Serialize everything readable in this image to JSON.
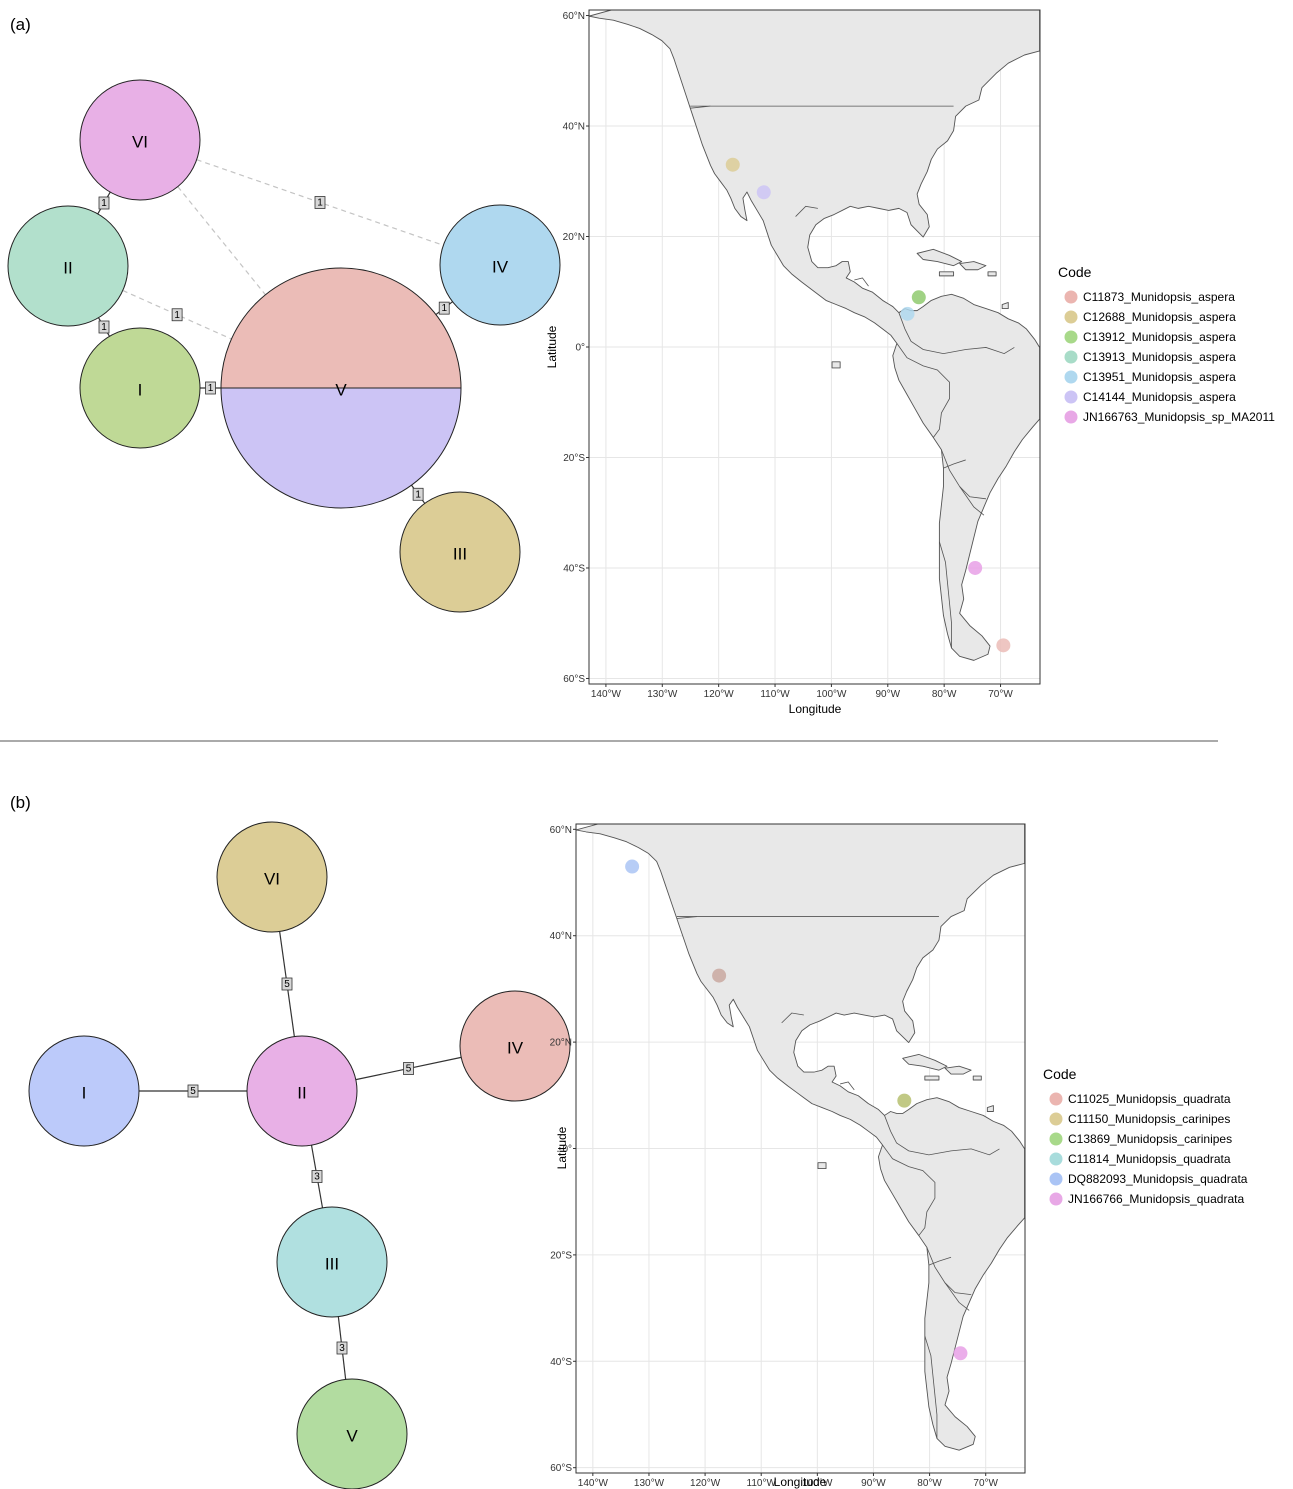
{
  "panels": [
    {
      "label": "(a)",
      "network": {
        "nodes": [
          {
            "id": "VI",
            "label": "VI",
            "color": "#e8b0e6"
          },
          {
            "id": "II",
            "label": "II",
            "color": "#b2e0cc"
          },
          {
            "id": "I",
            "label": "I",
            "color": "#bfd996"
          },
          {
            "id": "V",
            "label": "V",
            "colors": [
              "#ebbcb7",
              "#ccc4f5"
            ]
          },
          {
            "id": "IV",
            "label": "IV",
            "color": "#afd8ef"
          },
          {
            "id": "III",
            "label": "III",
            "color": "#dccd96"
          }
        ],
        "edges": [
          {
            "from": "VI",
            "to": "II",
            "steps": "1",
            "style": "solid"
          },
          {
            "from": "II",
            "to": "I",
            "steps": "1",
            "style": "solid"
          },
          {
            "from": "I",
            "to": "V",
            "steps": "1",
            "style": "solid"
          },
          {
            "from": "V",
            "to": "IV",
            "steps": "1",
            "style": "solid"
          },
          {
            "from": "V",
            "to": "III",
            "steps": "1",
            "style": "solid"
          },
          {
            "from": "II",
            "to": "V",
            "steps": "1",
            "style": "dashed"
          },
          {
            "from": "VI",
            "to": "IV",
            "steps": "1",
            "style": "dashed"
          },
          {
            "from": "VI",
            "to": "V",
            "steps": "",
            "style": "dashed"
          }
        ]
      },
      "map": {
        "x_ticks": [
          "140°W",
          "130°W",
          "120°W",
          "110°W",
          "100°W",
          "90°W",
          "80°W",
          "70°W"
        ],
        "y_ticks": [
          "60°N",
          "40°N",
          "20°N",
          "0°",
          "20°S",
          "40°S",
          "60°S"
        ],
        "xlabel": "Longitude",
        "ylabel": "Latitude",
        "points": [
          {
            "lon": -117.5,
            "lat": 33,
            "color": "#dccd96"
          },
          {
            "lon": -112,
            "lat": 28,
            "color": "#ccc4f5"
          },
          {
            "lon": -84.5,
            "lat": 9,
            "color": "#8fca6e"
          },
          {
            "lon": -86.5,
            "lat": 6,
            "color": "#afd8ef"
          },
          {
            "lon": -74.5,
            "lat": -40,
            "color": "#e8a0e6"
          },
          {
            "lon": -69.5,
            "lat": -54,
            "color": "#ebbcb7"
          }
        ],
        "legend_title": "Code",
        "legend": [
          {
            "label": "C11873_Munidopsis_aspera",
            "color": "#ebb5b0"
          },
          {
            "label": "C12688_Munidopsis_aspera",
            "color": "#dccd96"
          },
          {
            "label": "C13912_Munidopsis_aspera",
            "color": "#a8d98a"
          },
          {
            "label": "C13913_Munidopsis_aspera",
            "color": "#a8dcc8"
          },
          {
            "label": "C13951_Munidopsis_aspera",
            "color": "#afd8ef"
          },
          {
            "label": "C14144_Munidopsis_aspera",
            "color": "#ccc4f5"
          },
          {
            "label": "JN166763_Munidopsis_sp_MA2011",
            "color": "#e8a8e6"
          }
        ]
      }
    },
    {
      "label": "(b)",
      "network": {
        "nodes": [
          {
            "id": "VI",
            "label": "VI",
            "color": "#dccd96"
          },
          {
            "id": "II",
            "label": "II",
            "color": "#e8b0e6"
          },
          {
            "id": "IV",
            "label": "IV",
            "color": "#ebbcb7"
          },
          {
            "id": "I",
            "label": "I",
            "color": "#bccafa"
          },
          {
            "id": "III",
            "label": "III",
            "color": "#b0e0e0"
          },
          {
            "id": "V",
            "label": "V",
            "color": "#b2dca0"
          }
        ],
        "edges": [
          {
            "from": "VI",
            "to": "II",
            "steps": "5",
            "style": "solid"
          },
          {
            "from": "I",
            "to": "II",
            "steps": "5",
            "style": "solid"
          },
          {
            "from": "II",
            "to": "IV",
            "steps": "5",
            "style": "solid"
          },
          {
            "from": "II",
            "to": "III",
            "steps": "3",
            "style": "solid"
          },
          {
            "from": "III",
            "to": "V",
            "steps": "3",
            "style": "solid"
          }
        ]
      },
      "map": {
        "x_ticks": [
          "140°W",
          "130°W",
          "120°W",
          "110°W",
          "100°W",
          "90°W",
          "80°W",
          "70°W"
        ],
        "y_ticks": [
          "60°N",
          "40°N",
          "20°N",
          "0°",
          "20°S",
          "40°S",
          "60°S"
        ],
        "xlabel": "Longitude",
        "ylabel": "Latitude",
        "points": [
          {
            "lon": -133,
            "lat": 53,
            "color": "#aac4f5"
          },
          {
            "lon": -117.5,
            "lat": 32.5,
            "color": "#c9a8a0"
          },
          {
            "lon": -84.5,
            "lat": 9,
            "color": "#b6c070"
          },
          {
            "lon": -74.5,
            "lat": -38.5,
            "color": "#e8a0e6"
          }
        ],
        "legend_title": "Code",
        "legend": [
          {
            "label": "C11025_Munidopsis_quadrata",
            "color": "#ebb5b0"
          },
          {
            "label": "C11150_Munidopsis_carinipes",
            "color": "#dccd96"
          },
          {
            "label": "C13869_Munidopsis_carinipes",
            "color": "#a8d98a"
          },
          {
            "label": "C11814_Munidopsis_quadrata",
            "color": "#a8dcdc"
          },
          {
            "label": "DQ882093_Munidopsis_quadrata",
            "color": "#aac4f5"
          },
          {
            "label": "JN166766_Munidopsis_quadrata",
            "color": "#e8a8e6"
          }
        ]
      }
    }
  ]
}
